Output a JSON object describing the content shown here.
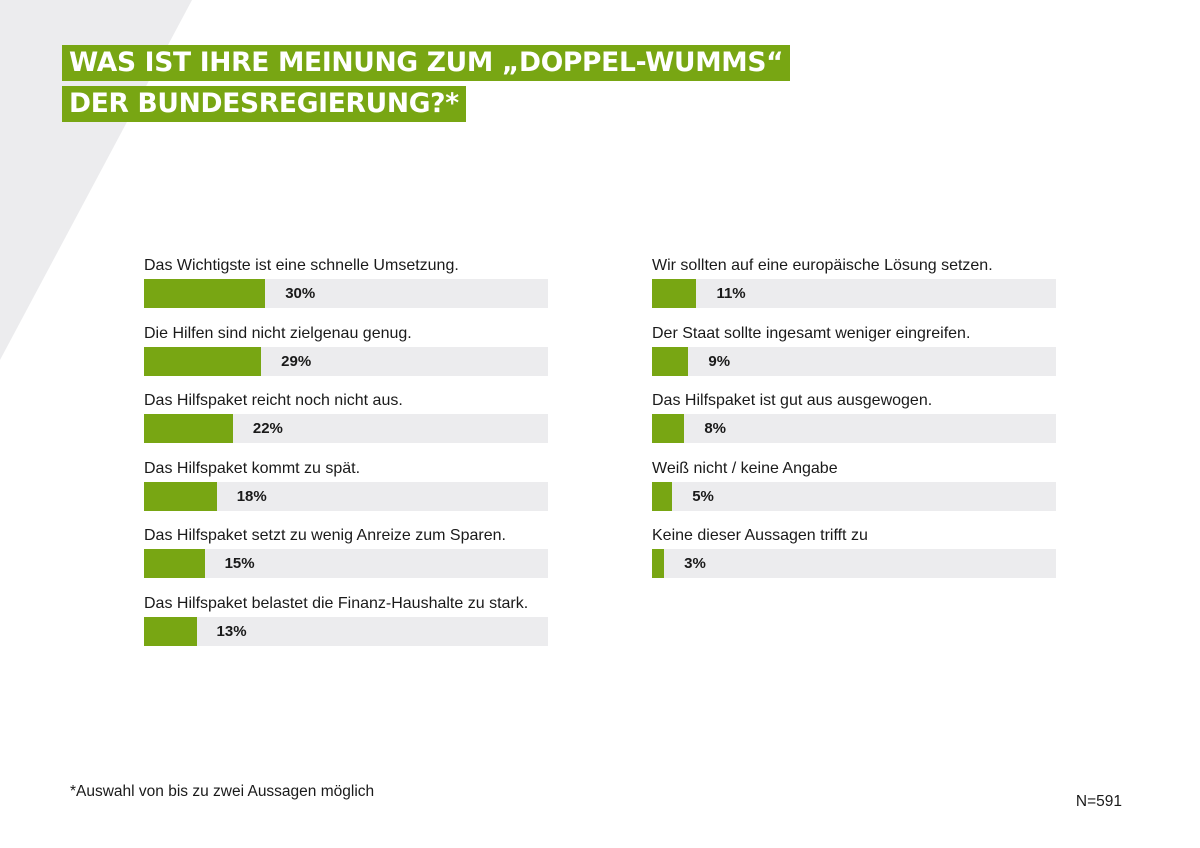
{
  "header": {
    "title_line1": "WAS IST IHRE MEINUNG ZUM „DOPPEL-WUMMS“",
    "title_line2": "DER BUNDESREGIERUNG?*"
  },
  "colors": {
    "accent": "#78a613",
    "track": "#ececee",
    "stripe": "#ececee"
  },
  "chart_data": {
    "type": "bar",
    "orientation": "horizontal",
    "unit": "%",
    "xlim": [
      0,
      100
    ],
    "grid": false,
    "categories": [
      "Das Wichtigste ist eine schnelle Umsetzung.",
      "Die Hilfen sind nicht zielgenau genug.",
      "Das Hilfspaket reicht noch nicht aus.",
      "Das Hilfspaket kommt zu spät.",
      "Das Hilfspaket setzt zu wenig Anreize zum Sparen.",
      "Das Hilfspaket belastet die Finanz-Haushalte zu stark.",
      "Wir sollten auf eine europäische Lösung setzen.",
      "Der Staat sollte ingesamt weniger eingreifen.",
      "Das Hilfspaket ist gut aus ausgewogen.",
      "Weiß nicht / keine Angabe",
      "Keine dieser Aussagen trifft zu"
    ],
    "values": [
      30,
      29,
      22,
      18,
      15,
      13,
      11,
      9,
      8,
      5,
      3
    ],
    "value_labels": [
      "30%",
      "29%",
      "22%",
      "18%",
      "15%",
      "13%",
      "11%",
      "9%",
      "8%",
      "5%",
      "3%"
    ]
  },
  "footer": {
    "footnote": "*Auswahl von bis zu zwei Aussagen möglich",
    "sample_size": "N=591"
  }
}
